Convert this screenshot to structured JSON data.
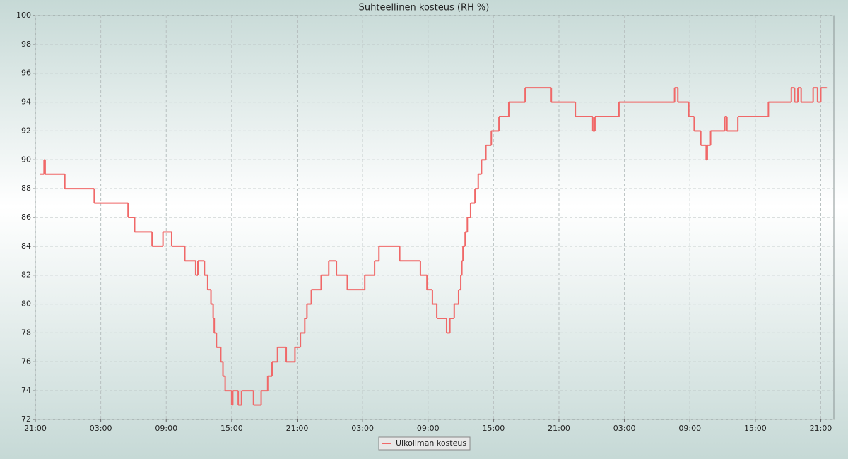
{
  "chart_data": {
    "type": "step-line",
    "title": "Suhteellinen kosteus (RH %)",
    "x": [
      0.4,
      0.8,
      0.9,
      2.7,
      5.4,
      8.5,
      9.1,
      10.7,
      11.7,
      12.5,
      13.7,
      14.7,
      14.9,
      15.5,
      15.8,
      16.1,
      16.3,
      16.4,
      16.6,
      17.0,
      17.2,
      17.4,
      18.0,
      18.1,
      18.6,
      18.9,
      20.0,
      20.7,
      21.3,
      21.7,
      22.2,
      23.0,
      23.8,
      24.3,
      24.7,
      24.9,
      25.3,
      26.2,
      26.9,
      27.6,
      28.6,
      30.2,
      31.1,
      31.5,
      33.4,
      35.3,
      35.9,
      36.4,
      36.8,
      37.7,
      38.0,
      38.4,
      38.8,
      39.0,
      39.1,
      39.2,
      39.4,
      39.6,
      39.9,
      40.3,
      40.6,
      40.9,
      41.3,
      41.8,
      42.5,
      43.4,
      44.9,
      47.3,
      49.5,
      51.1,
      51.3,
      53.5,
      58.6,
      58.9,
      59.9,
      60.4,
      61.0,
      61.5,
      61.6,
      61.9,
      63.2,
      63.4,
      64.4,
      67.2,
      69.3,
      69.6,
      69.9,
      70.2,
      71.3,
      71.7,
      72.0,
      72.5
    ],
    "series": [
      {
        "name": "Ulkoilman kosteus",
        "color": "#f06868",
        "values": [
          89,
          90,
          89,
          88,
          87,
          86,
          85,
          84,
          85,
          84,
          83,
          82,
          83,
          82,
          81,
          80,
          79,
          78,
          77,
          76,
          75,
          74,
          73,
          74,
          73,
          74,
          73,
          74,
          75,
          76,
          77,
          76,
          77,
          78,
          79,
          80,
          81,
          82,
          83,
          82,
          81,
          82,
          83,
          84,
          83,
          82,
          81,
          80,
          79,
          78,
          79,
          80,
          81,
          82,
          83,
          84,
          85,
          86,
          87,
          88,
          89,
          90,
          91,
          92,
          93,
          94,
          95,
          94,
          93,
          92,
          93,
          94,
          95,
          94,
          93,
          92,
          91,
          90,
          91,
          92,
          93,
          92,
          93,
          94,
          95,
          94,
          95,
          94,
          95,
          94,
          95,
          95
        ]
      }
    ],
    "xlim": [
      0,
      73.2
    ],
    "xticks": [
      {
        "value": 0,
        "label": "21:00"
      },
      {
        "value": 6,
        "label": "03:00"
      },
      {
        "value": 12,
        "label": "09:00"
      },
      {
        "value": 18,
        "label": "15:00"
      },
      {
        "value": 24,
        "label": "21:00"
      },
      {
        "value": 30,
        "label": "03:00"
      },
      {
        "value": 36,
        "label": "09:00"
      },
      {
        "value": 42,
        "label": "15:00"
      },
      {
        "value": 48,
        "label": "21:00"
      },
      {
        "value": 54,
        "label": "03:00"
      },
      {
        "value": 60,
        "label": "09:00"
      },
      {
        "value": 66,
        "label": "15:00"
      },
      {
        "value": 72,
        "label": "21:00"
      }
    ],
    "ylim": [
      72,
      100
    ],
    "yticks": [
      72,
      74,
      76,
      78,
      80,
      82,
      84,
      86,
      88,
      90,
      92,
      94,
      96,
      98,
      100
    ],
    "grid": true,
    "legend": "bottom"
  }
}
